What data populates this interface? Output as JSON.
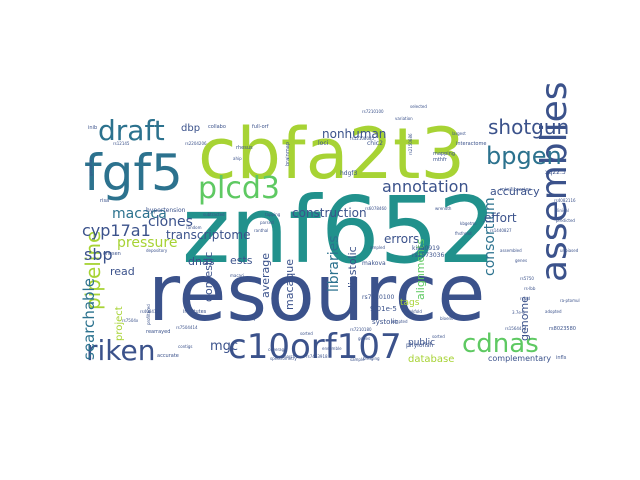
{
  "title": "Word cloud",
  "colors": {
    "background": "#ffffff",
    "palette": [
      "#3b528b",
      "#21918c",
      "#5ec962",
      "#a7d334",
      "#2c728e",
      "#440154",
      "#472d7b",
      "#28ae80",
      "#fde725"
    ]
  },
  "words": [
    {
      "text": "resource",
      "weight": 100,
      "color": "#3b528b"
    },
    {
      "text": "znf652",
      "weight": 96,
      "color": "#21918c"
    },
    {
      "text": "cbfa2t3",
      "weight": 86,
      "color": "#a7d334"
    },
    {
      "text": "fgf5",
      "weight": 52,
      "color": "#2c728e"
    },
    {
      "text": "assemblies",
      "weight": 40,
      "color": "#3b528b"
    },
    {
      "text": "c10orf107",
      "weight": 40,
      "color": "#3b528b"
    },
    {
      "text": "plcd3",
      "weight": 38,
      "color": "#5ec962"
    },
    {
      "text": "draft",
      "weight": 34,
      "color": "#2c728e"
    },
    {
      "text": "riken",
      "weight": 32,
      "color": "#3b528b"
    },
    {
      "text": "cdnas",
      "weight": 30,
      "color": "#5ec962"
    },
    {
      "text": "bpgen",
      "weight": 30,
      "color": "#2c728e"
    },
    {
      "text": "shotgun",
      "weight": 26,
      "color": "#3b528b"
    },
    {
      "text": "pipeline",
      "weight": 26,
      "color": "#a7d334"
    },
    {
      "text": "searchable",
      "weight": 22,
      "color": "#2c728e"
    },
    {
      "text": "annotation",
      "weight": 22,
      "color": "#3b528b"
    },
    {
      "text": "cyp17a1",
      "weight": 20,
      "color": "#3b528b"
    },
    {
      "text": "sbp",
      "weight": 20,
      "color": "#3b528b"
    },
    {
      "text": "macaca",
      "weight": 18,
      "color": "#2c728e"
    },
    {
      "text": "clones",
      "weight": 18,
      "color": "#3b528b"
    },
    {
      "text": "pressure",
      "weight": 18,
      "color": "#a7d334"
    },
    {
      "text": "libraries",
      "weight": 18,
      "color": "#2c728e"
    },
    {
      "text": "consortium",
      "weight": 18,
      "color": "#2c728e"
    },
    {
      "text": "mgc",
      "weight": 16,
      "color": "#3b528b"
    },
    {
      "text": "nonhuman",
      "weight": 16,
      "color": "#3b528b"
    },
    {
      "text": "construction",
      "weight": 15,
      "color": "#3b528b"
    },
    {
      "text": "transcriptome",
      "weight": 15,
      "color": "#3b528b"
    },
    {
      "text": "effort",
      "weight": 15,
      "color": "#3b528b"
    },
    {
      "text": "errors",
      "weight": 15,
      "color": "#3b528b"
    },
    {
      "text": "accuracy",
      "weight": 14,
      "color": "#3b528b"
    },
    {
      "text": "genome",
      "weight": 14,
      "color": "#3b528b"
    },
    {
      "text": "alignments",
      "weight": 14,
      "color": "#5ec962"
    },
    {
      "text": "database",
      "weight": 14,
      "color": "#a7d334"
    },
    {
      "text": "project",
      "weight": 14,
      "color": "#a7d334"
    },
    {
      "text": "average",
      "weight": 13,
      "color": "#3b528b"
    },
    {
      "text": "domestic",
      "weight": 13,
      "color": "#3b528b"
    },
    {
      "text": "macaque",
      "weight": 13,
      "color": "#3b528b"
    },
    {
      "text": "diastolic",
      "weight": 13,
      "color": "#3b528b"
    },
    {
      "text": "dnas",
      "weight": 13,
      "color": "#3b528b"
    },
    {
      "text": "ests",
      "weight": 13,
      "color": "#3b528b"
    },
    {
      "text": "read",
      "weight": 12,
      "color": "#3b528b"
    },
    {
      "text": "dbp",
      "weight": 12,
      "color": "#3b528b"
    },
    {
      "text": "tags",
      "weight": 11,
      "color": "#a7d334"
    },
    {
      "text": "public",
      "weight": 11,
      "color": "#3b528b"
    },
    {
      "text": "complementary",
      "weight": 8,
      "color": "#3b528b"
    },
    {
      "text": "9.01e-5",
      "weight": 7,
      "color": "#3b528b"
    },
    {
      "text": "systolic",
      "weight": 7,
      "color": "#3b528b"
    },
    {
      "text": "rs7210100",
      "weight": 7,
      "color": "#3b528b"
    },
    {
      "text": "rs1573036",
      "weight": 7,
      "color": "#3b528b"
    },
    {
      "text": "kiaa0919",
      "weight": 7,
      "color": "#3b528b"
    },
    {
      "text": "makova",
      "weight": 6,
      "color": "#3b528b"
    },
    {
      "text": "phylofish",
      "weight": 6,
      "color": "#3b528b"
    },
    {
      "text": "hypertension",
      "weight": 6,
      "color": "#3b528b"
    },
    {
      "text": "rearrayed",
      "weight": 6,
      "color": "#3b528b"
    },
    {
      "text": "accurate",
      "weight": 6,
      "color": "#3b528b"
    },
    {
      "text": "institutes",
      "weight": 6,
      "color": "#3b528b"
    },
    {
      "text": "collabo",
      "weight": 6,
      "color": "#3b528b"
    },
    {
      "text": "full-orf",
      "weight": 6,
      "color": "#3b528b"
    },
    {
      "text": "hdgf3",
      "weight": 6,
      "color": "#3b528b"
    },
    {
      "text": "chic2",
      "weight": 6,
      "color": "#3b528b"
    },
    {
      "text": "loci",
      "weight": 6,
      "color": "#3b528b"
    },
    {
      "text": "mapping",
      "weight": 5,
      "color": "#3b528b"
    },
    {
      "text": "mthfr",
      "weight": 5,
      "color": "#3b528b"
    },
    {
      "text": "interactome",
      "weight": 5,
      "color": "#3b528b"
    },
    {
      "text": "minilibraries",
      "weight": 5,
      "color": "#3b528b"
    },
    {
      "text": "xq22.3",
      "weight": 5,
      "color": "#3b528b"
    },
    {
      "text": "rhesus",
      "weight": 5,
      "color": "#3b528b"
    },
    {
      "text": "brainmap",
      "weight": 5,
      "color": "#3b528b"
    },
    {
      "text": "inib",
      "weight": 5,
      "color": "#3b528b"
    },
    {
      "text": "risa",
      "weight": 5,
      "color": "#3b528b"
    },
    {
      "text": "chosen",
      "weight": 5,
      "color": "#3b528b"
    },
    {
      "text": "rs8023580",
      "weight": 5,
      "color": "#3b528b"
    },
    {
      "text": "infls",
      "weight": 5,
      "color": "#3b528b"
    },
    {
      "text": "ahip",
      "weight": 4,
      "color": "#3b528b"
    },
    {
      "text": "subtracted",
      "weight": 4,
      "color": "#3b528b"
    },
    {
      "text": "rs1440827",
      "weight": 4,
      "color": "#3b528b"
    },
    {
      "text": "tapping",
      "weight": 4,
      "color": "#3b528b"
    },
    {
      "text": "profiltered",
      "weight": 4,
      "color": "#3b528b"
    },
    {
      "text": "adapted",
      "weight": 4,
      "color": "#3b528b"
    },
    {
      "text": "biokfold",
      "weight": 4,
      "color": "#3b528b"
    },
    {
      "text": "3.7e-5",
      "weight": 4,
      "color": "#3b528b"
    },
    {
      "text": "bridging",
      "weight": 4,
      "color": "#3b528b"
    },
    {
      "text": "ampled",
      "weight": 4,
      "color": "#3b528b"
    },
    {
      "text": "largest",
      "weight": 4,
      "color": "#3b528b"
    },
    {
      "text": "rs7504414",
      "weight": 4,
      "color": "#3b528b"
    },
    {
      "text": "rs4084171",
      "weight": 4,
      "color": "#3b528b"
    },
    {
      "text": "rs1564414",
      "weight": 4,
      "color": "#3b528b"
    },
    {
      "text": "rs12145",
      "weight": 4,
      "color": "#3b528b"
    },
    {
      "text": "rs2150686",
      "weight": 4,
      "color": "#3b528b"
    },
    {
      "text": "rs12108085",
      "weight": 4,
      "color": "#3b528b"
    },
    {
      "text": "rs2204206",
      "weight": 4,
      "color": "#3b528b"
    },
    {
      "text": "rs6078460",
      "weight": 4,
      "color": "#3b528b"
    },
    {
      "text": "macaci",
      "weight": 4,
      "color": "#3b528b"
    },
    {
      "text": "kbgetmi",
      "weight": 4,
      "color": "#3b528b"
    },
    {
      "text": "fhsfrend",
      "weight": 4,
      "color": "#3b528b"
    },
    {
      "text": "wrendth",
      "weight": 4,
      "color": "#3b528b"
    },
    {
      "text": "depository",
      "weight": 4,
      "color": "#3b528b"
    },
    {
      "text": "random",
      "weight": 4,
      "color": "#3b528b"
    },
    {
      "text": "ranthal",
      "weight": 4,
      "color": "#3b528b"
    },
    {
      "text": "unbiased",
      "weight": 4,
      "color": "#3b528b"
    },
    {
      "text": "contigs",
      "weight": 4,
      "color": "#3b528b"
    },
    {
      "text": "bloenc",
      "weight": 4,
      "color": "#3b528b"
    },
    {
      "text": "sorted",
      "weight": 4,
      "color": "#3b528b"
    },
    {
      "text": "ensemble",
      "weight": 4,
      "color": "#3b528b"
    },
    {
      "text": "variation",
      "weight": 4,
      "color": "#3b528b"
    },
    {
      "text": "rs7210100",
      "weight": 4,
      "color": "#3b528b"
    },
    {
      "text": "selected",
      "weight": 4,
      "color": "#3b528b"
    },
    {
      "text": "genoma",
      "weight": 4,
      "color": "#3b528b"
    },
    {
      "text": "synteny",
      "weight": 4,
      "color": "#3b528b"
    },
    {
      "text": "sorted",
      "weight": 4,
      "color": "#3b528b"
    },
    {
      "text": "parsed",
      "weight": 4,
      "color": "#3b528b"
    },
    {
      "text": "coverage",
      "weight": 4,
      "color": "#3b528b"
    },
    {
      "text": "search",
      "weight": 4,
      "color": "#3b528b"
    },
    {
      "text": "spectrometry",
      "weight": 4,
      "color": "#3b528b"
    },
    {
      "text": "rs7463918",
      "weight": 4,
      "color": "#3b528b"
    },
    {
      "text": "sample",
      "weight": 4,
      "color": "#3b528b"
    },
    {
      "text": "rs5750",
      "weight": 4,
      "color": "#3b528b"
    },
    {
      "text": "rs-lbb",
      "weight": 4,
      "color": "#3b528b"
    },
    {
      "text": "ra-ptomul",
      "weight": 4,
      "color": "#3b528b"
    },
    {
      "text": "adopted",
      "weight": 4,
      "color": "#3b528b"
    },
    {
      "text": "rs-ad",
      "weight": 4,
      "color": "#3b528b"
    },
    {
      "text": "rs7504x",
      "weight": 4,
      "color": "#3b528b"
    },
    {
      "text": "rs7210180",
      "weight": 4,
      "color": "#3b528b"
    },
    {
      "text": "genes",
      "weight": 4,
      "color": "#3b528b"
    },
    {
      "text": "assembled",
      "weight": 4,
      "color": "#3b528b"
    },
    {
      "text": "genes",
      "weight": 4,
      "color": "#3b528b"
    },
    {
      "text": "rs4082116",
      "weight": 4,
      "color": "#3b528b"
    },
    {
      "text": "clinical",
      "weight": 4,
      "color": "#3b528b"
    },
    {
      "text": "predicted",
      "weight": 4,
      "color": "#3b528b"
    }
  ]
}
